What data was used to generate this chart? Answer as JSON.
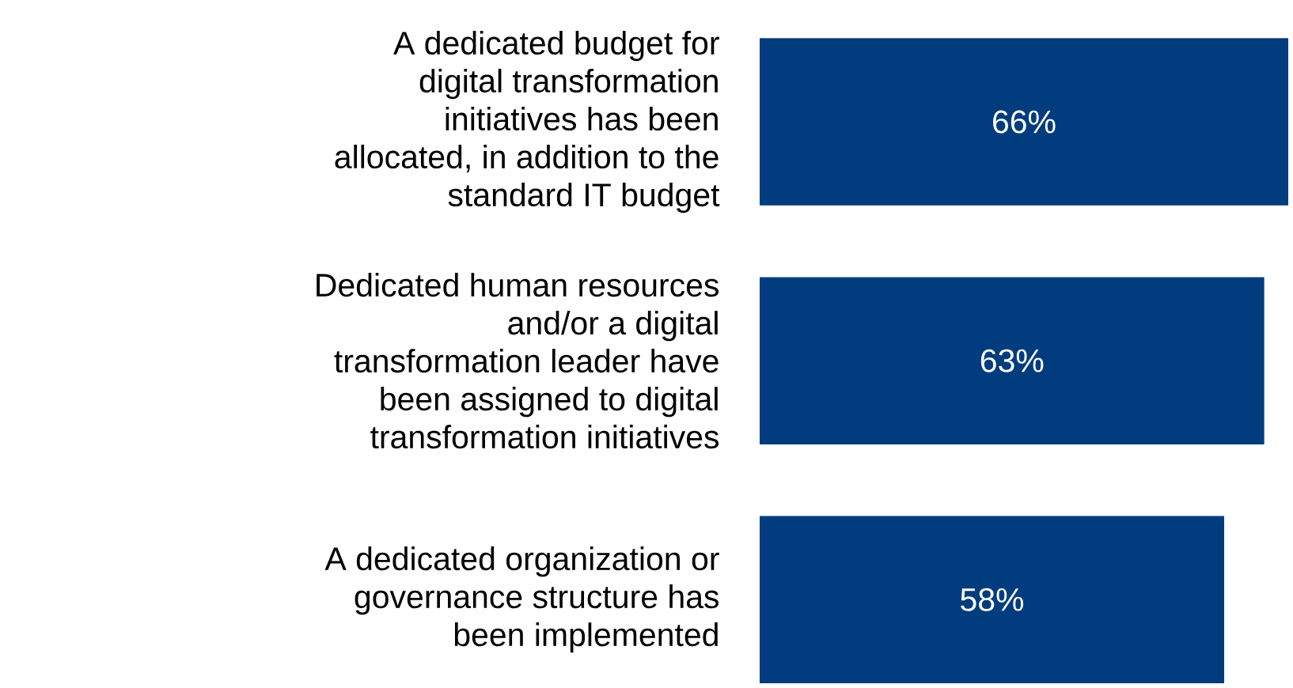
{
  "chart_data": {
    "type": "bar",
    "orientation": "horizontal",
    "categories": [
      "A dedicated budget for digital transformation initiatives has been allocated, in addition to the standard IT budget",
      "Dedicated human resources and/or a digital transformation leader have been assigned to digital transformation initiatives",
      "A dedicated organization or governance structure has been implemented"
    ],
    "values": [
      66,
      63,
      58
    ],
    "value_labels": [
      "66%",
      "63%",
      "58%"
    ],
    "color": "#003c7e"
  }
}
